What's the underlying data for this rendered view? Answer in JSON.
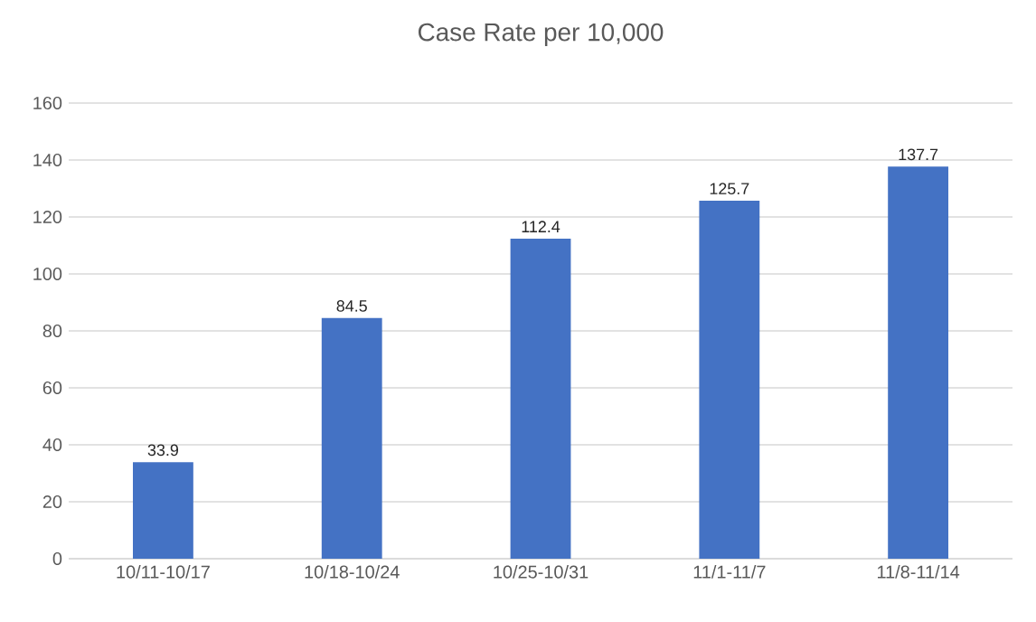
{
  "chart_data": {
    "type": "bar",
    "title": "Case Rate per 10,000",
    "categories": [
      "10/11-10/17",
      "10/18-10/24",
      "10/25-10/31",
      "11/1-11/7",
      "11/8-11/14"
    ],
    "values": [
      33.9,
      84.5,
      112.4,
      125.7,
      137.7
    ],
    "color": "#4472c4",
    "ylim": [
      0,
      160
    ],
    "yticks": [
      0,
      20,
      40,
      60,
      80,
      100,
      120,
      140,
      160
    ],
    "grid": "y",
    "data_labels": true
  }
}
